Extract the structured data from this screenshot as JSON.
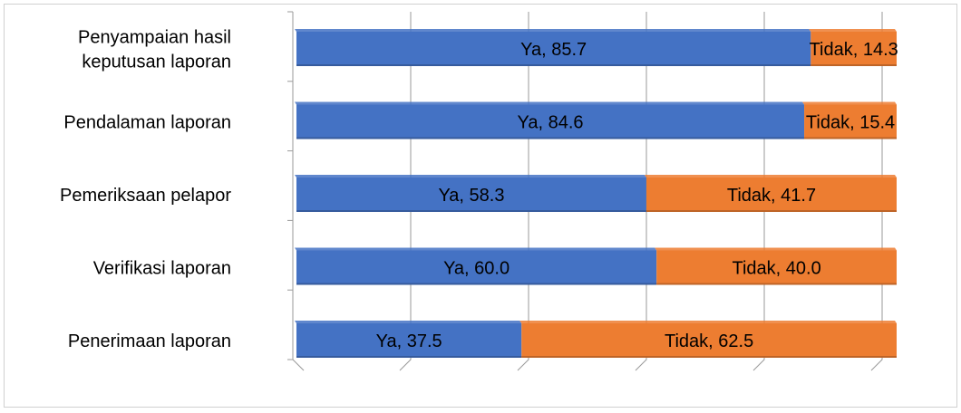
{
  "chart_data": {
    "type": "bar",
    "orientation": "horizontal",
    "stacked": true,
    "categories": [
      "Penyampaian hasil keputusan laporan",
      "Pendalaman laporan",
      "Pemeriksaan pelapor",
      "Verifikasi laporan",
      "Penerimaan laporan"
    ],
    "category_lines": [
      [
        "Penyampaian hasil",
        "keputusan laporan"
      ],
      [
        "Pendalaman laporan"
      ],
      [
        "Pemeriksaan pelapor"
      ],
      [
        "Verifikasi laporan"
      ],
      [
        "Penerimaan laporan"
      ]
    ],
    "series": [
      {
        "name": "Ya",
        "values": [
          85.7,
          84.6,
          58.3,
          60.0,
          37.5
        ],
        "labels": [
          "Ya, 85.7",
          "Ya, 84.6",
          "Ya, 58.3",
          "Ya, 60.0",
          "Ya, 37.5"
        ],
        "color": "#4472C4"
      },
      {
        "name": "Tidak",
        "values": [
          14.3,
          15.4,
          41.7,
          40.0,
          62.5
        ],
        "labels": [
          "Tidak, 14.3",
          "Tidak, 15.4",
          "Tidak, 41.7",
          "Tidak, 40.0",
          "Tidak, 62.5"
        ],
        "color": "#ED7D31"
      }
    ],
    "xlim": [
      0,
      100
    ],
    "grid": true,
    "legend": "none",
    "three_d": true,
    "colors": {
      "gridline": "#9a9a9a",
      "label_text": "#000000",
      "frame": "#d0d0d0"
    }
  }
}
